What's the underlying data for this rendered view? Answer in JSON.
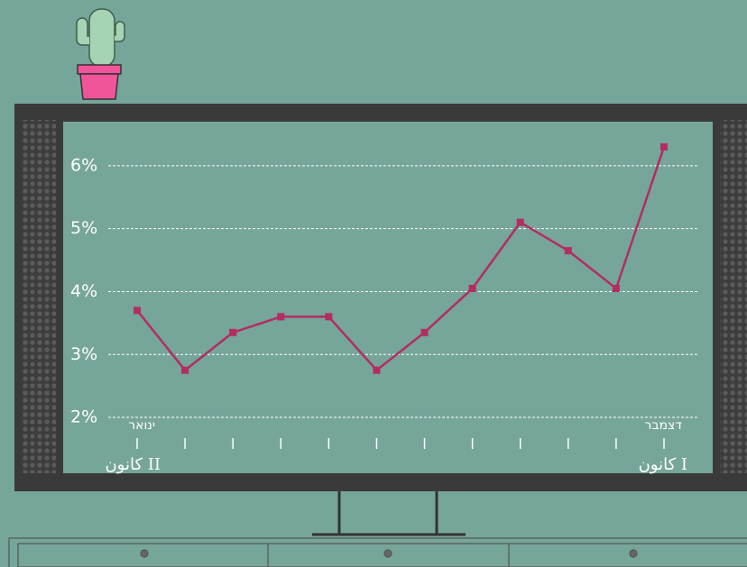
{
  "chart_data": {
    "type": "line",
    "categories": [
      "ינואר",
      null,
      null,
      null,
      null,
      null,
      null,
      null,
      null,
      null,
      null,
      "דצמבר"
    ],
    "category_sublabels": [
      "كانون II",
      null,
      null,
      null,
      null,
      null,
      null,
      null,
      null,
      null,
      null,
      "كانون I"
    ],
    "series": [
      {
        "color": "#b22d63",
        "values": [
          3.7,
          2.75,
          3.35,
          3.6,
          3.6,
          2.75,
          3.35,
          4.05,
          5.1,
          4.65,
          4.05,
          6.3
        ]
      }
    ],
    "ylim": [
      1.8,
      6.5
    ],
    "yticks": [
      {
        "value": 2,
        "label": "2%"
      },
      {
        "value": 3,
        "label": "3%"
      },
      {
        "value": 4,
        "label": "4%"
      },
      {
        "value": 5,
        "label": "5%"
      },
      {
        "value": 6,
        "label": "6%"
      }
    ],
    "grid": true
  }
}
